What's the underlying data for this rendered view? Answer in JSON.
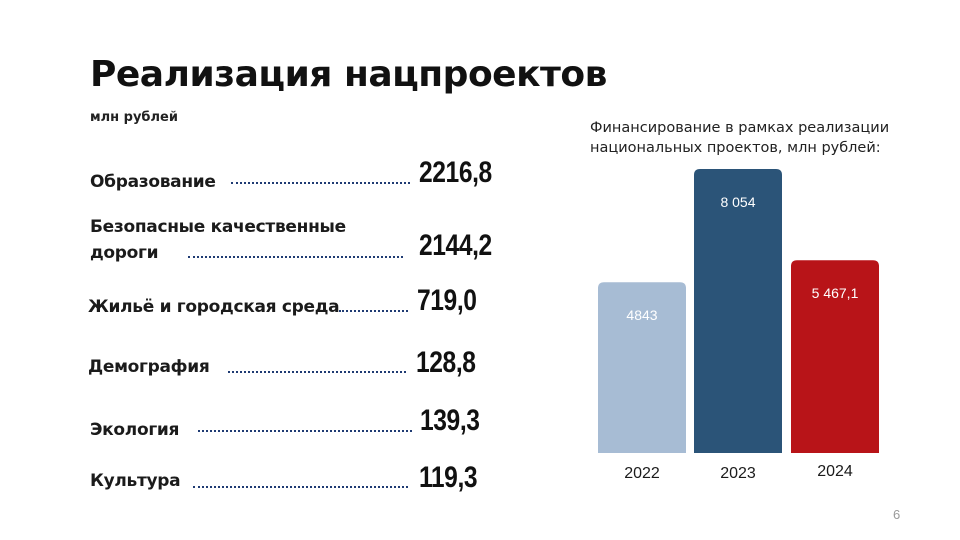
{
  "title": "Реализация нацпроектов",
  "subtitle": "млн рублей",
  "projects": [
    {
      "label_lines": [
        "Образование"
      ],
      "value": "2216,8"
    },
    {
      "label_lines": [
        "Безопасные качественные",
        "дороги"
      ],
      "value": "2144,2"
    },
    {
      "label_lines": [
        "Жильё и городская среда"
      ],
      "value": "719,0"
    },
    {
      "label_lines": [
        "Демография"
      ],
      "value": "128,8"
    },
    {
      "label_lines": [
        "Экология"
      ],
      "value": "139,3"
    },
    {
      "label_lines": [
        "Культура"
      ],
      "value": "119,3"
    }
  ],
  "chart_data": {
    "type": "bar",
    "title": "Финансирование в рамках реализации национальных проектов, млн рублей:",
    "categories": [
      "2022",
      "2023",
      "2024"
    ],
    "values": [
      4843,
      8054,
      5467.1
    ],
    "data_labels": [
      "4843",
      "8 054",
      "5 467,1"
    ],
    "colors": [
      "#a7bcd4",
      "#2b5478",
      "#b81418"
    ],
    "ylim": [
      0,
      8054
    ],
    "xlabel": "",
    "ylabel": "",
    "grid": false,
    "legend": "none"
  },
  "page_number": "6"
}
